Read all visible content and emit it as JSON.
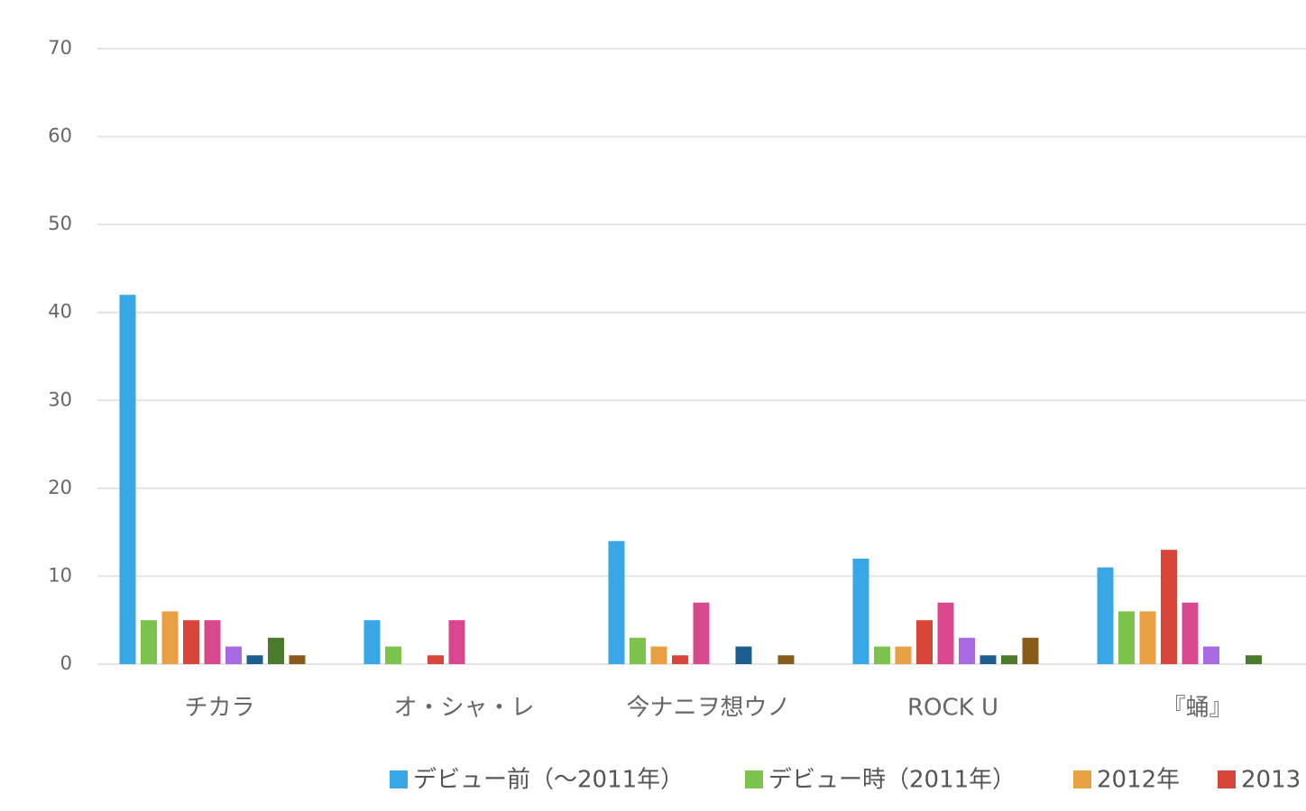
{
  "chart_data": {
    "type": "bar",
    "categories": [
      "チカラ",
      "オ・シャ・レ",
      "今ナニヲ想ウノ",
      "ROCK U",
      "『蛹』"
    ],
    "series": [
      {
        "name": "デビュー前（〜2011年）",
        "color": "#38a7e6",
        "values": [
          42,
          5,
          14,
          12,
          11
        ]
      },
      {
        "name": "デビュー時（2011年）",
        "color": "#7cc34b",
        "values": [
          5,
          2,
          3,
          2,
          6
        ]
      },
      {
        "name": "2012年",
        "color": "#e9a043",
        "values": [
          6,
          0,
          2,
          2,
          6
        ]
      },
      {
        "name": "2013",
        "color": "#d8463a",
        "values": [
          5,
          1,
          1,
          5,
          13
        ]
      },
      {
        "color": "#d8488f",
        "values": [
          5,
          5,
          7,
          7,
          7
        ]
      },
      {
        "color": "#a86ae2",
        "values": [
          2,
          0,
          0,
          3,
          2
        ]
      },
      {
        "color": "#1b5f8f",
        "values": [
          1,
          0,
          2,
          1,
          0
        ]
      },
      {
        "color": "#4b7a2c",
        "values": [
          3,
          0,
          0,
          1,
          1
        ]
      },
      {
        "color": "#8b5a1a",
        "values": [
          1,
          0,
          1,
          3,
          0
        ]
      }
    ],
    "ylim": [
      0,
      70
    ],
    "yticks": [
      0,
      10,
      20,
      30,
      40,
      50,
      60,
      70
    ],
    "grid": true
  }
}
